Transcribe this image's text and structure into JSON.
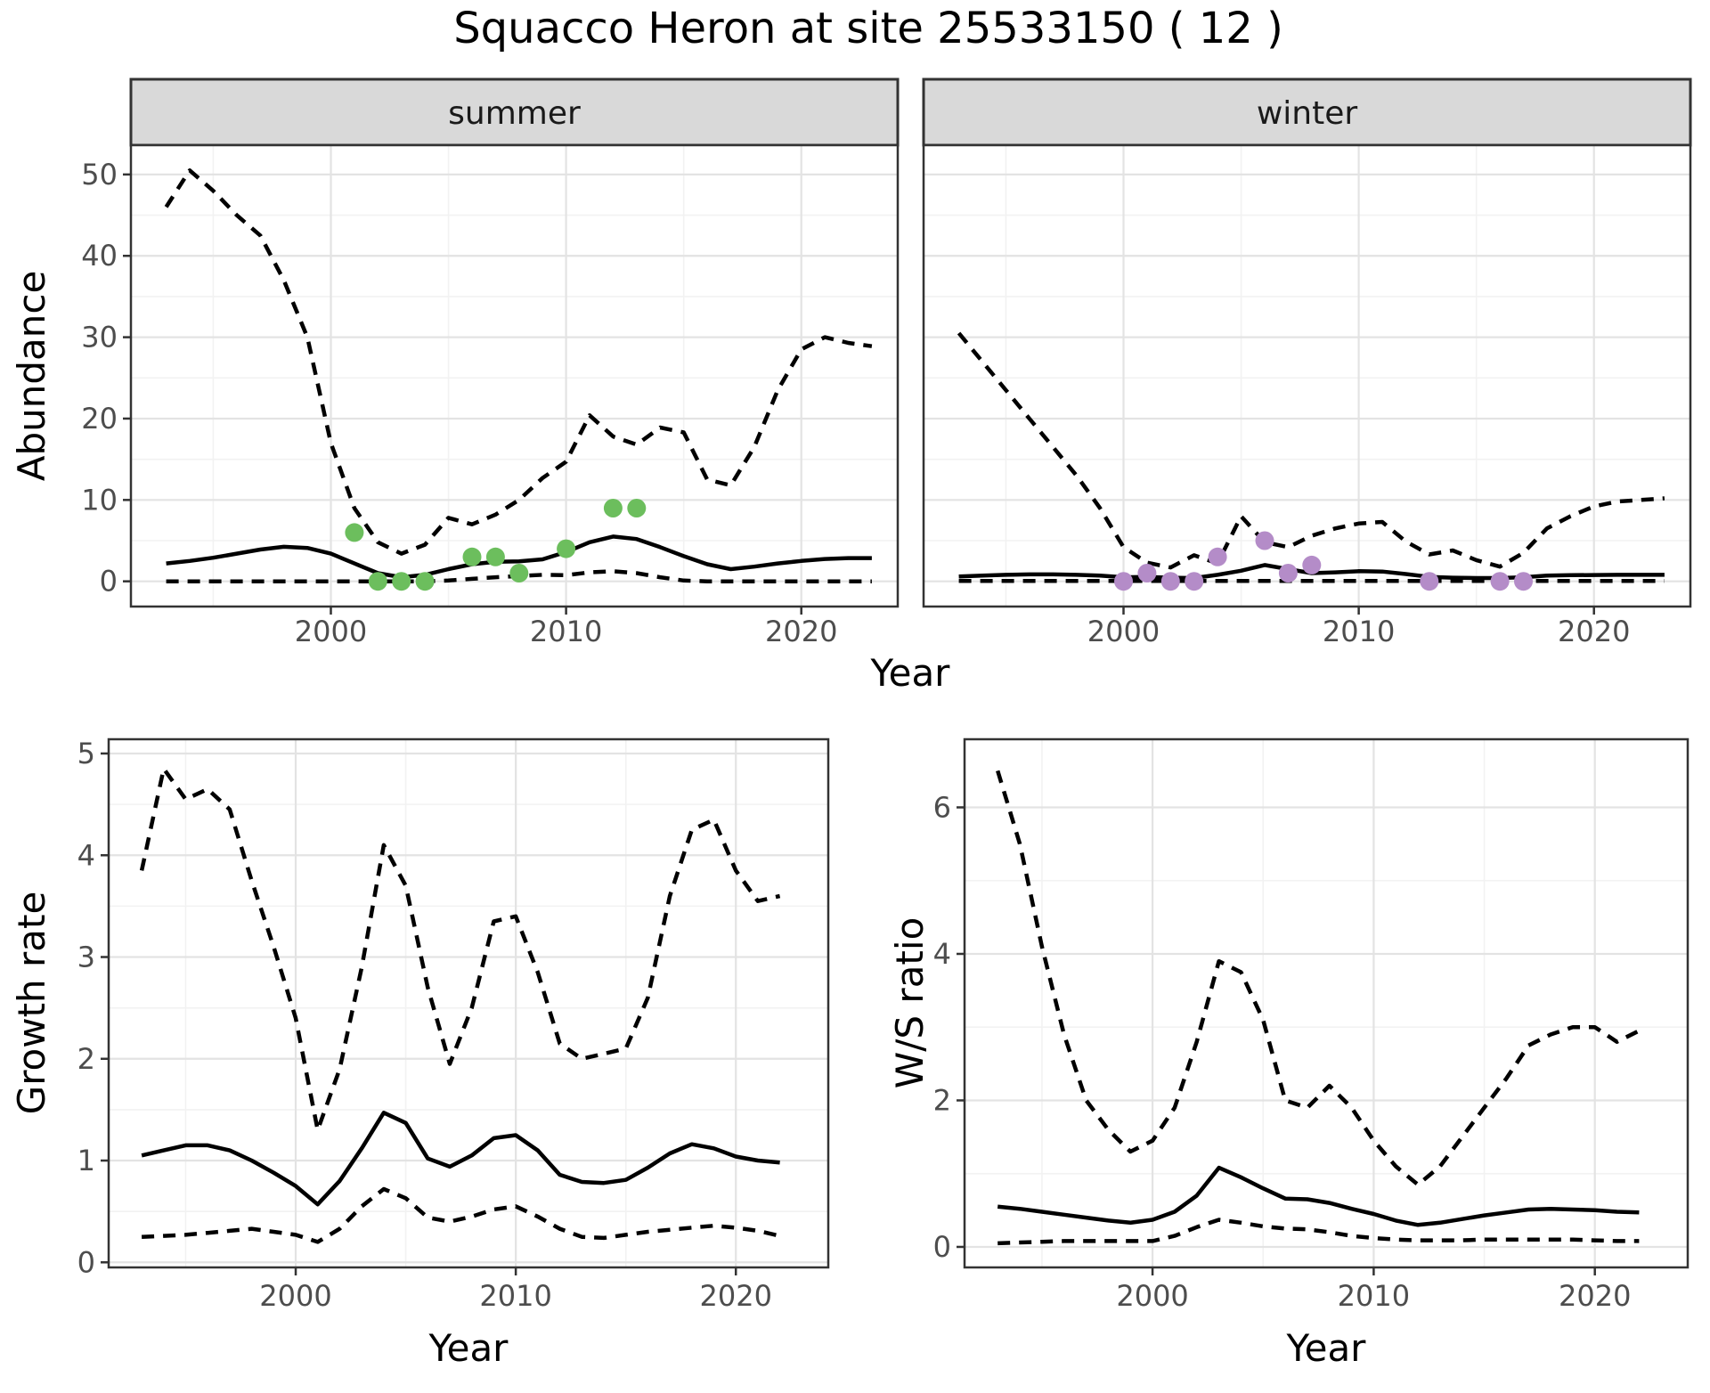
{
  "title": "Squacco Heron at site 25533150 ( 12 )",
  "colors": {
    "summer_points": "#6CBE5D",
    "winter_points": "#B48CC8",
    "line": "#000000",
    "tick_text": "#4D4D4D",
    "axis_text": "#000000",
    "strip_fill": "#D9D9D9",
    "panel_border": "#333333",
    "grid_major": "#E3E3E3",
    "grid_minor": "#F2F2F2"
  },
  "chart_data": [
    {
      "id": "abundance",
      "type": "line",
      "xlabel": "Year",
      "ylabel": "Abundance",
      "x_ticks": [
        2000,
        2010,
        2020
      ],
      "x_minor_ticks": [
        1995,
        2005,
        2015
      ],
      "y_ticks": [
        0,
        10,
        20,
        30,
        40,
        50
      ],
      "y_minor_ticks": [
        5,
        15,
        25,
        35,
        45
      ],
      "xlim": [
        1991.5,
        2024.1
      ],
      "ylim": [
        -3.1,
        53.6
      ],
      "grid": true,
      "legend_position": "none",
      "facets": [
        {
          "label": "summer",
          "series": [
            {
              "name": "upper-95ci",
              "style": "dashed",
              "x_start": 1993,
              "values": [
                46,
                50.5,
                48,
                45,
                42.5,
                37,
                30,
                17,
                9,
                4.8,
                3.4,
                4.5,
                7.8,
                7,
                8.2,
                10,
                12.7,
                14.7,
                20.4,
                17.8,
                16.8,
                18.9,
                18.3,
                12.5,
                11.8,
                16.5,
                23.5,
                28.5,
                30,
                29.3,
                28.9
              ]
            },
            {
              "name": "median",
              "style": "solid",
              "x_start": 1993,
              "values": [
                2.2,
                2.5,
                2.9,
                3.4,
                3.9,
                4.25,
                4.1,
                3.4,
                2.2,
                1.0,
                0.5,
                0.8,
                1.5,
                2.1,
                2.4,
                2.45,
                2.7,
                3.6,
                4.8,
                5.5,
                5.2,
                4.2,
                3.1,
                2.1,
                1.5,
                1.8,
                2.2,
                2.5,
                2.75,
                2.85,
                2.85
              ]
            },
            {
              "name": "lower-95ci",
              "style": "dashed",
              "x_start": 1993,
              "values": [
                0,
                0,
                0,
                0,
                0,
                0,
                0,
                0,
                0,
                0,
                0,
                0,
                0.1,
                0.3,
                0.5,
                0.65,
                0.8,
                0.75,
                1.1,
                1.25,
                1.0,
                0.5,
                0.1,
                0,
                0,
                0,
                0,
                0,
                0,
                0,
                0
              ]
            }
          ],
          "points": {
            "name": "observed-counts",
            "color_key": "summer_points",
            "x": [
              2001,
              2002,
              2003,
              2004,
              2006,
              2007,
              2008,
              2010,
              2012,
              2013
            ],
            "y": [
              6,
              0,
              0,
              0,
              3,
              3,
              1,
              4,
              9,
              9
            ]
          }
        },
        {
          "label": "winter",
          "series": [
            {
              "name": "upper-95ci",
              "style": "dashed",
              "x_start": 1993,
              "values": [
                30.5,
                27,
                23.5,
                20,
                16.5,
                13,
                9,
                4.2,
                2.3,
                1.7,
                3.2,
                2.2,
                8,
                4.8,
                4.2,
                5.6,
                6.5,
                7.1,
                7.3,
                4.9,
                3.3,
                3.8,
                2.6,
                1.8,
                3.5,
                6.5,
                8,
                9.2,
                9.8,
                10,
                10.2
              ]
            },
            {
              "name": "median",
              "style": "solid",
              "x_start": 1993,
              "values": [
                0.6,
                0.7,
                0.8,
                0.85,
                0.85,
                0.8,
                0.7,
                0.5,
                0.55,
                0.45,
                0.4,
                0.8,
                1.3,
                2.0,
                1.5,
                1.0,
                1.1,
                1.25,
                1.2,
                0.9,
                0.55,
                0.45,
                0.4,
                0.4,
                0.5,
                0.7,
                0.75,
                0.78,
                0.8,
                0.8,
                0.8
              ]
            },
            {
              "name": "lower-95ci",
              "style": "dashed",
              "x_start": 1993,
              "values": [
                0.05,
                0.05,
                0.05,
                0.05,
                0.05,
                0.05,
                0.05,
                0.05,
                0.05,
                0.05,
                0.05,
                0.05,
                0.05,
                0.05,
                0.05,
                0.05,
                0.05,
                0.05,
                0.05,
                0.05,
                0.05,
                0.05,
                0.05,
                0.05,
                0.05,
                0.05,
                0.05,
                0.05,
                0.05,
                0.05,
                0.05
              ]
            }
          ],
          "points": {
            "name": "observed-counts",
            "color_key": "winter_points",
            "x": [
              2000,
              2001,
              2002,
              2003,
              2004,
              2006,
              2007,
              2008,
              2013,
              2016,
              2017
            ],
            "y": [
              0,
              1,
              0,
              0,
              3,
              5,
              1,
              2,
              0,
              0,
              0
            ]
          }
        }
      ]
    },
    {
      "id": "growth_rate",
      "type": "line",
      "xlabel": "Year",
      "ylabel": "Growth rate",
      "x_ticks": [
        2000,
        2010,
        2020
      ],
      "x_minor_ticks": [
        1995,
        2005,
        2015
      ],
      "y_ticks": [
        0,
        1,
        2,
        3,
        4,
        5
      ],
      "y_minor_ticks": [
        0.5,
        1.5,
        2.5,
        3.5,
        4.5
      ],
      "xlim": [
        1991.5,
        2024.2
      ],
      "ylim": [
        -0.05,
        5.14
      ],
      "grid": true,
      "series": [
        {
          "name": "upper-95ci",
          "style": "dashed",
          "x_start": 1993,
          "values": [
            3.85,
            4.85,
            4.55,
            4.65,
            4.45,
            3.75,
            3.1,
            2.4,
            1.3,
            1.9,
            2.9,
            4.1,
            3.7,
            2.7,
            1.95,
            2.5,
            3.35,
            3.4,
            2.85,
            2.15,
            2.0,
            2.05,
            2.1,
            2.6,
            3.6,
            4.25,
            4.35,
            3.85,
            3.55,
            3.6
          ]
        },
        {
          "name": "median",
          "style": "solid",
          "x_start": 1993,
          "values": [
            1.05,
            1.1,
            1.15,
            1.15,
            1.1,
            1.0,
            0.88,
            0.75,
            0.57,
            0.8,
            1.12,
            1.47,
            1.37,
            1.02,
            0.94,
            1.05,
            1.22,
            1.25,
            1.1,
            0.86,
            0.79,
            0.78,
            0.81,
            0.93,
            1.07,
            1.16,
            1.12,
            1.04,
            1.0,
            0.98
          ]
        },
        {
          "name": "lower-95ci",
          "style": "dashed",
          "x_start": 1993,
          "values": [
            0.25,
            0.26,
            0.27,
            0.29,
            0.31,
            0.33,
            0.3,
            0.27,
            0.2,
            0.33,
            0.55,
            0.72,
            0.63,
            0.44,
            0.4,
            0.45,
            0.52,
            0.55,
            0.45,
            0.33,
            0.25,
            0.24,
            0.27,
            0.3,
            0.32,
            0.34,
            0.36,
            0.34,
            0.31,
            0.26
          ]
        }
      ]
    },
    {
      "id": "ws_ratio",
      "type": "line",
      "xlabel": "Year",
      "ylabel": "W/S ratio",
      "x_ticks": [
        2000,
        2010,
        2020
      ],
      "x_minor_ticks": [
        1995,
        2005,
        2015
      ],
      "y_ticks": [
        0,
        2,
        4,
        6
      ],
      "y_minor_ticks": [
        1,
        3,
        5
      ],
      "xlim": [
        1991.5,
        2024.2
      ],
      "ylim": [
        -0.28,
        6.93
      ],
      "grid": true,
      "series": [
        {
          "name": "upper-95ci",
          "style": "dashed",
          "x_start": 1993,
          "values": [
            6.5,
            5.5,
            4.1,
            2.9,
            2.0,
            1.6,
            1.3,
            1.45,
            1.9,
            2.8,
            3.9,
            3.75,
            3.1,
            2.0,
            1.9,
            2.2,
            1.9,
            1.45,
            1.1,
            0.85,
            1.1,
            1.5,
            1.9,
            2.3,
            2.75,
            2.9,
            3.0,
            3.0,
            2.8,
            2.95
          ]
        },
        {
          "name": "median",
          "style": "solid",
          "x_start": 1993,
          "values": [
            0.55,
            0.52,
            0.48,
            0.44,
            0.4,
            0.36,
            0.33,
            0.37,
            0.48,
            0.7,
            1.08,
            0.95,
            0.8,
            0.66,
            0.65,
            0.6,
            0.52,
            0.45,
            0.36,
            0.3,
            0.33,
            0.38,
            0.43,
            0.47,
            0.51,
            0.52,
            0.51,
            0.5,
            0.48,
            0.47
          ]
        },
        {
          "name": "lower-95ci",
          "style": "dashed",
          "x_start": 1993,
          "values": [
            0.05,
            0.06,
            0.07,
            0.08,
            0.08,
            0.08,
            0.08,
            0.08,
            0.15,
            0.27,
            0.37,
            0.33,
            0.28,
            0.25,
            0.24,
            0.2,
            0.15,
            0.12,
            0.1,
            0.09,
            0.09,
            0.09,
            0.1,
            0.1,
            0.1,
            0.1,
            0.1,
            0.09,
            0.08,
            0.08
          ]
        }
      ]
    }
  ]
}
